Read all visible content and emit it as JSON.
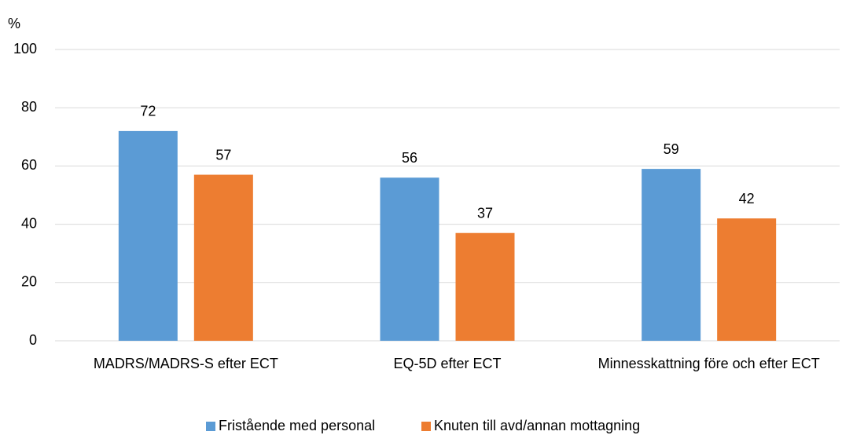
{
  "chart_data": {
    "type": "bar",
    "y_label": "%",
    "categories": [
      "MADRS/MADRS-S efter ECT",
      "EQ-5D efter ECT",
      "Minnesskattning före och efter ECT"
    ],
    "series": [
      {
        "name": "Fristående med personal",
        "color": "#5b9bd5",
        "values": [
          72,
          56,
          59
        ]
      },
      {
        "name": "Knuten till avd/annan mottagning",
        "color": "#ed7d31",
        "values": [
          57,
          37,
          42
        ]
      }
    ],
    "ylim": [
      0,
      100
    ],
    "yticks": [
      0,
      20,
      40,
      60,
      80,
      100
    ],
    "grid": true,
    "legend": "bottom"
  }
}
